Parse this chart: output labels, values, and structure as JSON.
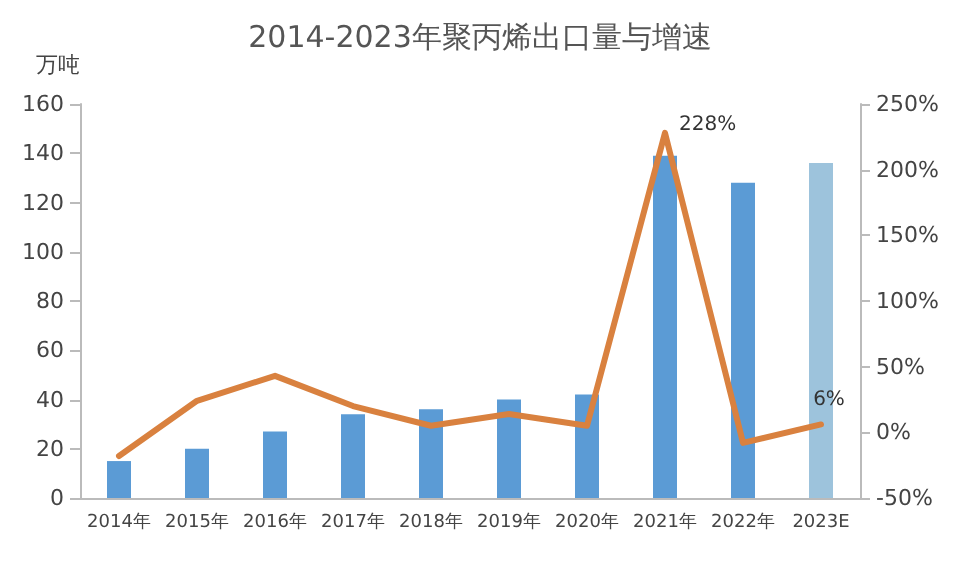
{
  "chart_data": {
    "type": "bar",
    "title": "2014-2023年聚丙烯出口量与增速",
    "ylabel": "万吨",
    "categories": [
      "2014年",
      "2015年",
      "2016年",
      "2017年",
      "2018年",
      "2019年",
      "2020年",
      "2021年",
      "2022年",
      "2023E"
    ],
    "series": [
      {
        "colors": [
          "#5b9bd5",
          "#5b9bd5",
          "#5b9bd5",
          "#5b9bd5",
          "#5b9bd5",
          "#5b9bd5",
          "#5b9bd5",
          "#5b9bd5",
          "#5b9bd5",
          "#9dc3dc"
        ],
        "values": [
          15,
          20,
          27,
          34,
          36,
          40,
          42,
          139,
          128,
          136
        ]
      },
      {
        "type": "line",
        "axis": "y2",
        "color": "#d9813f",
        "values": [
          -18,
          24,
          43,
          20,
          5,
          14,
          5,
          228,
          -8,
          6
        ],
        "value_labels": [
          null,
          null,
          null,
          null,
          null,
          null,
          null,
          "228%",
          null,
          "6%"
        ]
      }
    ],
    "ylim": [
      0,
      160
    ],
    "yticks": [
      0,
      20,
      40,
      60,
      80,
      100,
      120,
      140,
      160
    ],
    "y2lim": [
      -50,
      250
    ],
    "y2ticks": [
      {
        "value": -50,
        "label": "-50%"
      },
      {
        "value": 0,
        "label": "0%"
      },
      {
        "value": 50,
        "label": "50%"
      },
      {
        "value": 100,
        "label": "100%"
      },
      {
        "value": 150,
        "label": "150%"
      },
      {
        "value": 200,
        "label": "200%"
      },
      {
        "value": 250,
        "label": "250%"
      }
    ],
    "grid": false,
    "marker": "none",
    "line_style": "solid"
  }
}
